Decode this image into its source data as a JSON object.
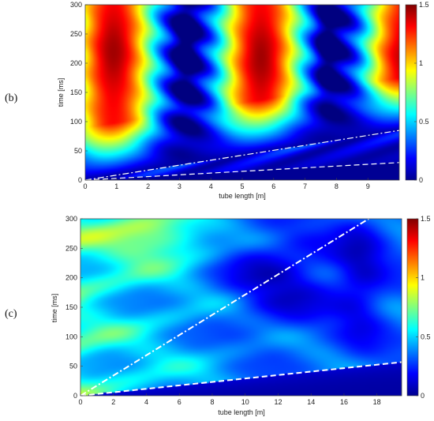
{
  "chart_data": [
    {
      "type": "heatmap",
      "panel_label": "(b)",
      "title": "",
      "xlabel": "tube length [m]",
      "ylabel": "time [ms]",
      "xlim": [
        0,
        10
      ],
      "ylim": [
        0,
        300
      ],
      "x_ticks": [
        0,
        1,
        2,
        3,
        4,
        5,
        6,
        7,
        8,
        9
      ],
      "y_ticks": [
        0,
        50,
        100,
        150,
        200,
        250,
        300
      ],
      "colorbar": {
        "range": [
          0,
          1.5
        ],
        "ticks": [
          0,
          0.5,
          1,
          1.5
        ],
        "colormap": "jet"
      },
      "overlay_lines": [
        {
          "style": "dash-dot",
          "color": "#ffffff",
          "from": [
            0,
            0
          ],
          "to": [
            10,
            85
          ]
        },
        {
          "style": "dashed",
          "color": "#ffffff",
          "from": [
            0,
            0
          ],
          "to": [
            10,
            30
          ]
        }
      ],
      "peaks": [
        {
          "x": 0.9,
          "y": 220,
          "value": 1.3
        },
        {
          "x": 5.6,
          "y": 210,
          "value": 1.35
        },
        {
          "x": 9.7,
          "y": 210,
          "value": 1.05
        }
      ],
      "troughs_x": [
        3.2,
        7.7
      ]
    },
    {
      "type": "heatmap",
      "panel_label": "(c)",
      "title": "",
      "xlabel": "tube length [m]",
      "ylabel": "time [ms]",
      "xlim": [
        0,
        19.5
      ],
      "ylim": [
        0,
        300
      ],
      "x_ticks": [
        0,
        2,
        4,
        6,
        8,
        10,
        12,
        14,
        16,
        18
      ],
      "y_ticks": [
        0,
        50,
        100,
        150,
        200,
        250,
        300
      ],
      "colorbar": {
        "range": [
          0,
          1.5
        ],
        "ticks": [
          0,
          0.5,
          1,
          1.5
        ],
        "colormap": "jet"
      },
      "overlay_lines": [
        {
          "style": "dash-dot",
          "color": "#ffffff",
          "from": [
            0,
            0
          ],
          "to": [
            17.5,
            300
          ]
        },
        {
          "style": "dashed",
          "color": "#ffffff",
          "from": [
            0,
            0
          ],
          "to": [
            19.5,
            57
          ]
        }
      ],
      "max_value_region": {
        "x": [
          2,
          7
        ],
        "y": [
          220,
          300
        ],
        "value": 0.85
      }
    }
  ]
}
